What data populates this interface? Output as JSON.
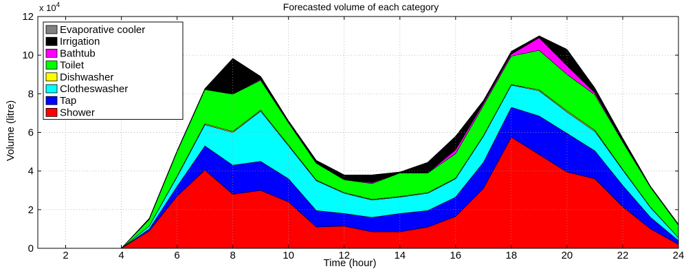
{
  "chart_data": {
    "type": "area",
    "stacked": true,
    "title": "Forecasted volume of each category",
    "xlabel": "Time (hour)",
    "ylabel": "Volume (litre)",
    "y_exponent_label": "x 10",
    "y_exponent_power": "4",
    "xlim": [
      1,
      24
    ],
    "ylim": [
      0,
      120000
    ],
    "grid": true,
    "legend_position": "top-left",
    "x": [
      1,
      2,
      3,
      4,
      5,
      6,
      7,
      8,
      9,
      10,
      11,
      12,
      13,
      14,
      15,
      16,
      17,
      18,
      19,
      20,
      21,
      22,
      23,
      24
    ],
    "x_ticks": [
      2,
      4,
      6,
      8,
      10,
      12,
      14,
      16,
      18,
      20,
      22,
      24
    ],
    "x_tick_labels": [
      "2",
      "4",
      "6",
      "8",
      "10",
      "12",
      "14",
      "16",
      "18",
      "20",
      "22",
      "24"
    ],
    "y_ticks": [
      0,
      20000,
      40000,
      60000,
      80000,
      100000,
      120000
    ],
    "y_tick_labels": [
      "0",
      "2",
      "4",
      "6",
      "8",
      "10",
      "12"
    ],
    "series": [
      {
        "name": "Shower",
        "color": "#ff0000",
        "values": [
          0,
          0,
          0,
          0,
          9000,
          27000,
          40500,
          28000,
          30000,
          24000,
          11000,
          11500,
          8500,
          8500,
          11000,
          16500,
          31000,
          57500,
          48500,
          39500,
          36000,
          21500,
          10000,
          2000
        ]
      },
      {
        "name": "Tap",
        "color": "#0000ff",
        "values": [
          0,
          0,
          0,
          0,
          1000,
          5000,
          12500,
          15000,
          15000,
          12000,
          8500,
          6500,
          7500,
          9500,
          8500,
          10000,
          13500,
          15500,
          20000,
          20000,
          14500,
          11000,
          6000,
          2000
        ]
      },
      {
        "name": "Clotheswasher",
        "color": "#00ffff",
        "values": [
          0,
          0,
          0,
          0,
          1500,
          5000,
          11000,
          17000,
          26000,
          17000,
          15500,
          10500,
          9000,
          8500,
          9000,
          9500,
          13500,
          11500,
          13000,
          11000,
          10000,
          8000,
          5000,
          1500
        ]
      },
      {
        "name": "Dishwasher",
        "color": "#ffff00",
        "values": [
          0,
          0,
          0,
          0,
          0,
          300,
          400,
          500,
          500,
          500,
          300,
          300,
          300,
          300,
          300,
          300,
          300,
          300,
          500,
          600,
          600,
          300,
          200,
          0
        ]
      },
      {
        "name": "Toilet",
        "color": "#00ff00",
        "values": [
          0,
          0,
          0,
          0,
          3500,
          12700,
          17800,
          19300,
          15500,
          11500,
          8700,
          6700,
          8200,
          12200,
          10200,
          12700,
          15700,
          14700,
          20500,
          18900,
          18400,
          14200,
          10300,
          6500
        ]
      },
      {
        "name": "Bathtub",
        "color": "#ff00ff",
        "values": [
          0,
          0,
          0,
          0,
          0,
          0,
          0,
          0,
          500,
          0,
          0,
          0,
          500,
          0,
          0,
          2000,
          1000,
          1000,
          6500,
          4500,
          1000,
          500,
          0,
          0
        ]
      },
      {
        "name": "Irrigation",
        "color": "#000000",
        "values": [
          0,
          0,
          0,
          0,
          500,
          500,
          500,
          18500,
          1500,
          1000,
          1500,
          2500,
          4000,
          500,
          5500,
          7000,
          1500,
          1500,
          1000,
          8500,
          2500,
          1500,
          500,
          500
        ]
      },
      {
        "name": "Evaporative cooler",
        "color": "#808080",
        "values": [
          0,
          0,
          0,
          0,
          0,
          0,
          0,
          0,
          0,
          0,
          0,
          0,
          0,
          0,
          0,
          0,
          0,
          0,
          0,
          0,
          0,
          0,
          0,
          0
        ]
      }
    ]
  }
}
